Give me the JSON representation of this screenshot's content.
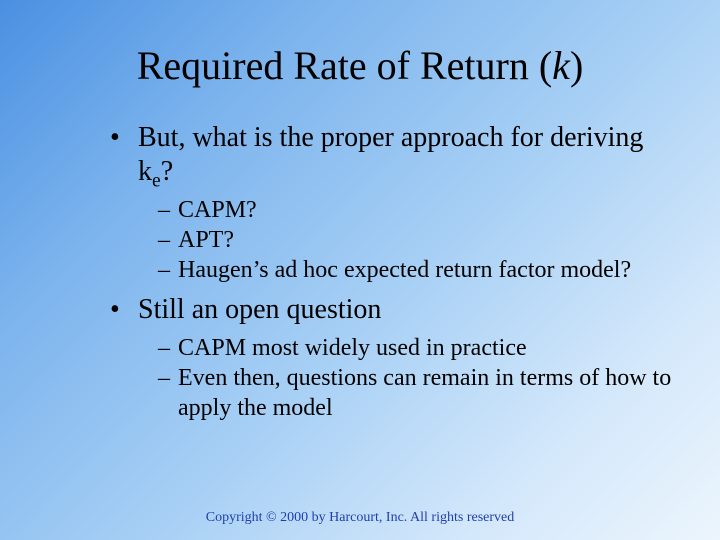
{
  "title": {
    "prefix": "Required Rate of Return (",
    "k": "k",
    "suffix": ")"
  },
  "bullets": {
    "b1": {
      "pre": "But, what is the proper approach for deriving k",
      "sub": "e",
      "post": "?"
    },
    "s1a": "CAPM?",
    "s1b": "APT?",
    "s1c": "Haugen’s ad hoc expected return factor model?",
    "b2": "Still an open question",
    "s2a": "CAPM most widely used in practice",
    "s2b": "Even then, questions can remain in terms of how to apply the model"
  },
  "footer": "Copyright © 2000 by Harcourt, Inc.  All rights reserved"
}
